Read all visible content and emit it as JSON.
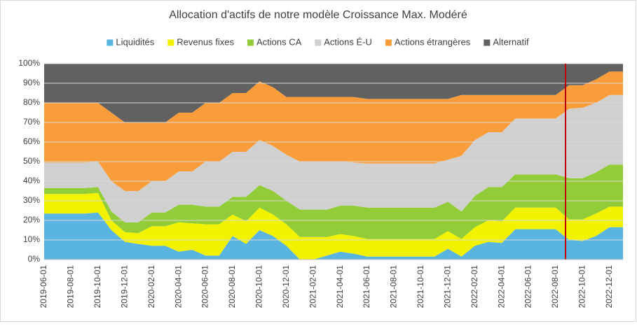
{
  "chart_data": {
    "type": "stacked_area",
    "title": "Allocation d'actifs de notre modèle Croissance Max. Modéré",
    "categories": [
      "2019-06-01",
      null,
      "2019-08-01",
      null,
      "2019-10-01",
      null,
      "2019-12-01",
      null,
      "2020-02-01",
      null,
      "2020-04-01",
      null,
      "2020-06-01",
      null,
      "2020-08-01",
      null,
      "2020-10-01",
      null,
      "2020-12-01",
      null,
      "2021-02-01",
      null,
      "2021-04-01",
      null,
      "2021-06-01",
      null,
      "2021-08-01",
      null,
      "2021-10-01",
      null,
      "2021-12-01",
      null,
      "2022-02-01",
      null,
      "2022-04-01",
      null,
      "2022-06-01",
      null,
      "2022-08-01",
      null,
      "2022-10-01",
      null,
      "2022-12-01",
      null
    ],
    "series": [
      {
        "name": "Liquidités",
        "color": "#5ab4e0",
        "values": [
          23.5,
          23.5,
          23.5,
          23.5,
          24,
          15,
          9,
          8,
          7,
          7,
          4,
          5,
          2,
          2,
          12,
          8,
          15,
          12,
          7,
          0,
          0,
          2,
          4,
          3,
          1.5,
          1.5,
          1.5,
          1.5,
          1.5,
          1.5,
          5.5,
          1.5,
          7,
          9,
          8.5,
          15.5,
          15.5,
          15.5,
          15.5,
          10,
          9.5,
          12,
          16.5,
          16.5
        ]
      },
      {
        "name": "Revenus fixes",
        "color": "#f2f200",
        "values": [
          10,
          10,
          10,
          10,
          10,
          5,
          5,
          5.5,
          10,
          10,
          15,
          13.5,
          16,
          16,
          11,
          11.5,
          11.5,
          11,
          11,
          11.5,
          11.5,
          9.5,
          9,
          9,
          9,
          9,
          9,
          9,
          9,
          9,
          9,
          9,
          9.5,
          11,
          11,
          11,
          11,
          11,
          11,
          10.5,
          11,
          11.5,
          10.5,
          10.5
        ]
      },
      {
        "name": "Actions CA",
        "color": "#92cc38",
        "values": [
          3,
          3,
          3,
          3,
          3,
          4.5,
          5,
          5.5,
          7,
          7,
          9,
          9.5,
          9,
          9,
          9,
          12.5,
          11.5,
          12,
          12,
          14,
          14,
          14,
          14.5,
          15.5,
          16,
          16,
          16,
          16,
          16,
          16,
          15,
          14,
          16,
          17,
          17.5,
          17,
          17,
          17,
          17,
          21,
          21,
          21,
          21.5,
          21.5
        ]
      },
      {
        "name": "Actions É-U",
        "color": "#d0d0d0",
        "values": [
          13,
          13,
          13,
          13,
          13,
          15.5,
          16,
          16,
          16,
          16,
          17,
          17,
          23,
          23,
          23,
          23,
          23,
          23,
          23.5,
          24.5,
          24.5,
          24.5,
          22.5,
          22,
          22.5,
          22.5,
          22.5,
          22.5,
          22.5,
          22.5,
          21.5,
          28.5,
          28.5,
          28,
          28,
          28.5,
          28.5,
          28.5,
          28.5,
          35.5,
          36,
          35.5,
          35.5,
          35.5
        ]
      },
      {
        "name": "Actions étrangères",
        "color": "#f99d3a",
        "values": [
          30.5,
          30.5,
          30.5,
          30.5,
          30,
          35,
          35,
          35,
          30,
          30,
          30,
          30,
          30,
          30,
          30,
          30,
          30,
          30,
          29.5,
          33,
          33,
          33,
          33,
          33.5,
          33,
          33,
          33,
          33,
          33,
          33,
          31,
          31,
          23,
          19,
          19,
          12,
          12,
          12,
          12,
          12,
          11.5,
          12,
          12,
          12
        ]
      },
      {
        "name": "Alternatif",
        "color": "#616161",
        "values": [
          20,
          20,
          20,
          20,
          20,
          25,
          30,
          30,
          30,
          30,
          25,
          25,
          20,
          20,
          15,
          15,
          9,
          12,
          17,
          17,
          17,
          17,
          17,
          17,
          18,
          18,
          18,
          18,
          18,
          18,
          18,
          16,
          16,
          16,
          16,
          16,
          16,
          16,
          16,
          11,
          11,
          8,
          4,
          4
        ]
      }
    ],
    "ylim": [
      0,
      100
    ],
    "yticks": [
      {
        "value": 0,
        "label": "0%"
      },
      {
        "value": 10,
        "label": "10%"
      },
      {
        "value": 20,
        "label": "20%"
      },
      {
        "value": 30,
        "label": "30%"
      },
      {
        "value": 40,
        "label": "40%"
      },
      {
        "value": 50,
        "label": "50%"
      },
      {
        "value": 60,
        "label": "60%"
      },
      {
        "value": 70,
        "label": "70%"
      },
      {
        "value": 80,
        "label": "80%"
      },
      {
        "value": 90,
        "label": "90%"
      },
      {
        "value": 100,
        "label": "100%"
      }
    ],
    "grid": true,
    "legend": "top"
  }
}
